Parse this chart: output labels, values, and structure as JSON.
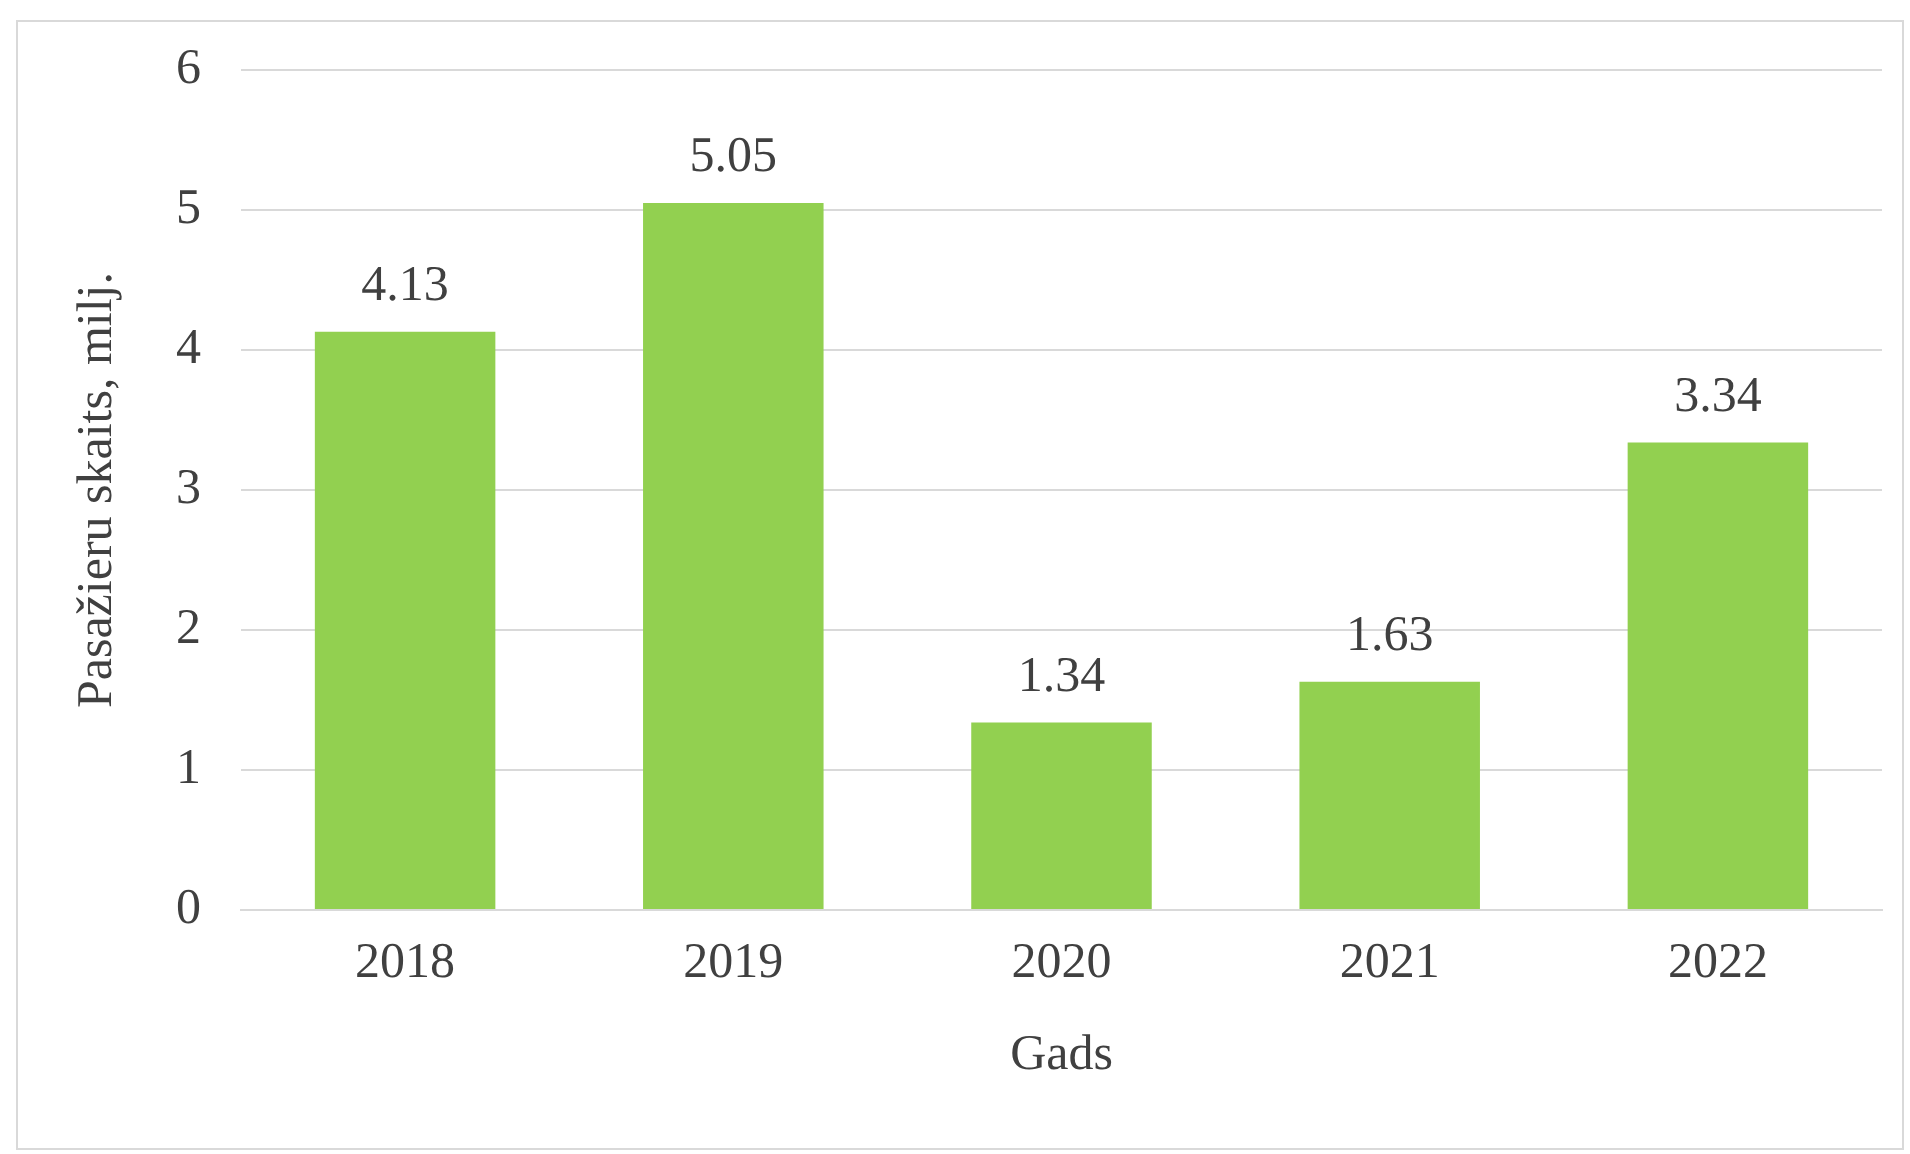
{
  "chart_data": {
    "type": "bar",
    "xlabel": "Gads",
    "ylabel": "Pasažieru skaits, milj.",
    "categories": [
      "2018",
      "2019",
      "2020",
      "2021",
      "2022"
    ],
    "values": [
      4.13,
      5.05,
      1.34,
      1.63,
      3.34
    ],
    "color": "#92d050",
    "ylim": [
      0,
      6
    ],
    "yticks": [
      0,
      1,
      2,
      3,
      4,
      5,
      6
    ],
    "grid": "y",
    "legend": false,
    "data_labels": true
  }
}
